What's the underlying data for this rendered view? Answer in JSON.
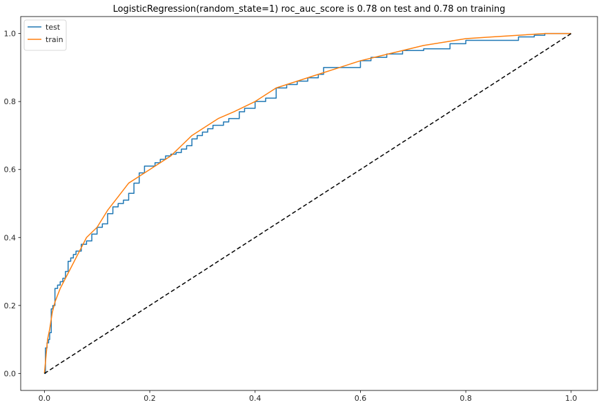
{
  "chart_data": {
    "type": "line",
    "title": "LogisticRegression(random_state=1) roc_auc_score is 0.78 on test and 0.78 on training",
    "xlabel": "",
    "ylabel": "",
    "xlim": [
      -0.045,
      1.05
    ],
    "ylim": [
      -0.05,
      1.05
    ],
    "xticks": [
      "0.0",
      "0.2",
      "0.4",
      "0.6",
      "0.8",
      "1.0"
    ],
    "yticks": [
      "0.0",
      "0.2",
      "0.4",
      "0.6",
      "0.8",
      "1.0"
    ],
    "grid": false,
    "legend": "top-left",
    "series": [
      {
        "name": "test",
        "color": "#1f77b4",
        "step": true,
        "x": [
          0.0,
          0.002,
          0.005,
          0.008,
          0.01,
          0.013,
          0.016,
          0.02,
          0.025,
          0.03,
          0.035,
          0.04,
          0.045,
          0.05,
          0.055,
          0.06,
          0.07,
          0.08,
          0.09,
          0.1,
          0.11,
          0.12,
          0.13,
          0.14,
          0.15,
          0.16,
          0.17,
          0.18,
          0.19,
          0.2,
          0.21,
          0.22,
          0.23,
          0.24,
          0.25,
          0.26,
          0.27,
          0.28,
          0.29,
          0.3,
          0.31,
          0.32,
          0.34,
          0.35,
          0.37,
          0.38,
          0.4,
          0.42,
          0.44,
          0.46,
          0.48,
          0.5,
          0.52,
          0.53,
          0.56,
          0.6,
          0.62,
          0.65,
          0.68,
          0.72,
          0.77,
          0.8,
          0.85,
          0.9,
          0.93,
          0.95,
          1.0
        ],
        "y": [
          0.0,
          0.075,
          0.09,
          0.1,
          0.12,
          0.19,
          0.2,
          0.25,
          0.26,
          0.27,
          0.28,
          0.3,
          0.33,
          0.34,
          0.35,
          0.36,
          0.38,
          0.39,
          0.41,
          0.43,
          0.44,
          0.47,
          0.49,
          0.5,
          0.51,
          0.53,
          0.56,
          0.59,
          0.61,
          0.61,
          0.62,
          0.63,
          0.64,
          0.645,
          0.65,
          0.66,
          0.67,
          0.69,
          0.7,
          0.71,
          0.72,
          0.73,
          0.74,
          0.75,
          0.77,
          0.78,
          0.8,
          0.81,
          0.84,
          0.85,
          0.86,
          0.87,
          0.88,
          0.9,
          0.9,
          0.92,
          0.93,
          0.94,
          0.95,
          0.955,
          0.97,
          0.98,
          0.98,
          0.99,
          0.995,
          1.0,
          1.0
        ]
      },
      {
        "name": "train",
        "color": "#ff7f0e",
        "step": false,
        "x": [
          0.0,
          0.003,
          0.006,
          0.01,
          0.015,
          0.02,
          0.03,
          0.04,
          0.05,
          0.06,
          0.07,
          0.08,
          0.09,
          0.1,
          0.12,
          0.14,
          0.16,
          0.18,
          0.2,
          0.22,
          0.24,
          0.26,
          0.28,
          0.3,
          0.33,
          0.36,
          0.4,
          0.44,
          0.48,
          0.52,
          0.56,
          0.6,
          0.64,
          0.68,
          0.72,
          0.76,
          0.8,
          0.85,
          0.9,
          0.95,
          1.0
        ],
        "y": [
          0.0,
          0.05,
          0.1,
          0.13,
          0.18,
          0.21,
          0.25,
          0.28,
          0.31,
          0.34,
          0.37,
          0.4,
          0.415,
          0.43,
          0.48,
          0.52,
          0.56,
          0.58,
          0.6,
          0.62,
          0.64,
          0.67,
          0.7,
          0.72,
          0.75,
          0.77,
          0.8,
          0.84,
          0.86,
          0.88,
          0.9,
          0.92,
          0.935,
          0.95,
          0.965,
          0.975,
          0.985,
          0.99,
          0.995,
          1.0,
          1.0
        ]
      },
      {
        "name": "",
        "color": "#000000",
        "dashed": true,
        "x": [
          0.0,
          1.0
        ],
        "y": [
          0.0,
          1.0
        ]
      }
    ]
  }
}
